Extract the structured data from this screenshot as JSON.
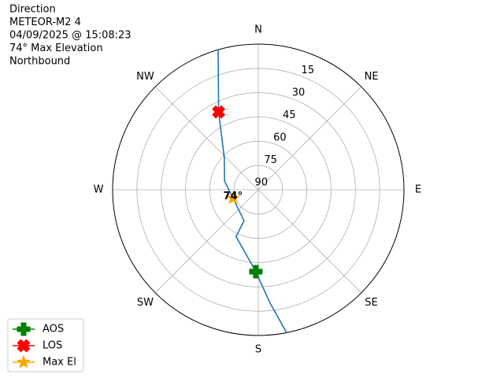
{
  "chart_data": {
    "type": "polar",
    "title": [
      "Direction",
      "METEOR-M2 4",
      "04/09/2025 @ 15:08:23",
      "74° Max Elevation",
      "Northbound"
    ],
    "theta_zero_location": "N",
    "theta_direction": "clockwise",
    "rlabel_position": 22.5,
    "xticks": [
      {
        "value": 0,
        "label": "N"
      },
      {
        "value": 45,
        "label": "NE"
      },
      {
        "value": 90,
        "label": "E"
      },
      {
        "value": 135,
        "label": "SE"
      },
      {
        "value": 180,
        "label": "S"
      },
      {
        "value": 225,
        "label": "SW"
      },
      {
        "value": 270,
        "label": "W"
      },
      {
        "value": 315,
        "label": "NW"
      }
    ],
    "ylim": [
      90,
      0
    ],
    "yticks": [
      15,
      30,
      45,
      60,
      75,
      90
    ],
    "grid": true,
    "series": [
      {
        "color": "#1f77b4",
        "marker": "none",
        "x": [
          168.8,
          174,
          181.7,
          205.4,
          204.8,
          251.6,
          284.4,
          313.6,
          333,
          344
        ],
        "values": [
          0,
          19.5,
          39.4,
          58,
          69,
          73.5,
          68.5,
          61,
          36,
          0
        ]
      },
      {
        "name": "AOS",
        "color": "#008000",
        "marker": "plus",
        "x": [
          181.7
        ],
        "values": [
          39.4
        ]
      },
      {
        "name": "LOS",
        "color": "#ff0000",
        "marker": "x",
        "x": [
          333
        ],
        "values": [
          36
        ]
      },
      {
        "name": "Max El",
        "color": "#ffa500",
        "marker": "star",
        "x": [
          251.6
        ],
        "values": [
          73.5
        ]
      }
    ],
    "annotations": [
      {
        "text": "74°",
        "x": 251.6,
        "y": 73.5
      }
    ],
    "legend": "lower left"
  }
}
